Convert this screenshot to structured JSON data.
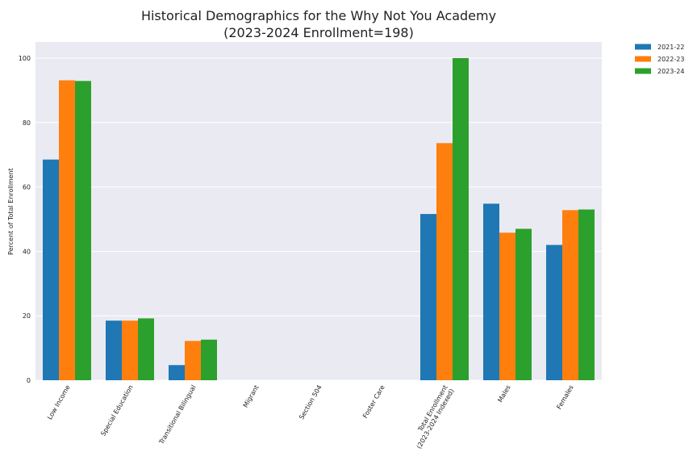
{
  "chart_data": {
    "type": "bar",
    "title": "Historical Demographics for the Why Not You Academy",
    "subtitle": "(2023-2024 Enrollment=198)",
    "xlabel": "",
    "ylabel": "Percent of Total Enrollment",
    "ylim": [
      0,
      105
    ],
    "yticks": [
      0,
      20,
      40,
      60,
      80,
      100
    ],
    "grid": true,
    "legend_position": "outside-top-right",
    "categories": [
      [
        "Low Income"
      ],
      [
        "Special Education"
      ],
      [
        "Transitional Bilingual"
      ],
      [
        "Migrant"
      ],
      [
        "Section 504"
      ],
      [
        "Foster Care"
      ],
      [
        "Total Enrollment",
        "(2023-2024 Indexed)"
      ],
      [
        "Males"
      ],
      [
        "Females"
      ]
    ],
    "series": [
      {
        "name": "2021-22",
        "color": "#1f77b4",
        "values": [
          68.5,
          18.5,
          4.7,
          0,
          0,
          0,
          51.6,
          54.8,
          42.0
        ]
      },
      {
        "name": "2022-23",
        "color": "#ff7f0e",
        "values": [
          93.1,
          18.5,
          12.2,
          0,
          0,
          0,
          73.6,
          45.8,
          52.8
        ]
      },
      {
        "name": "2023-24",
        "color": "#2ca02c",
        "values": [
          92.9,
          19.2,
          12.6,
          0,
          0,
          0,
          100.0,
          47.0,
          53.0
        ]
      }
    ]
  },
  "colors": {
    "plot_background": "#eaeaf2",
    "grid": "#ffffff"
  }
}
